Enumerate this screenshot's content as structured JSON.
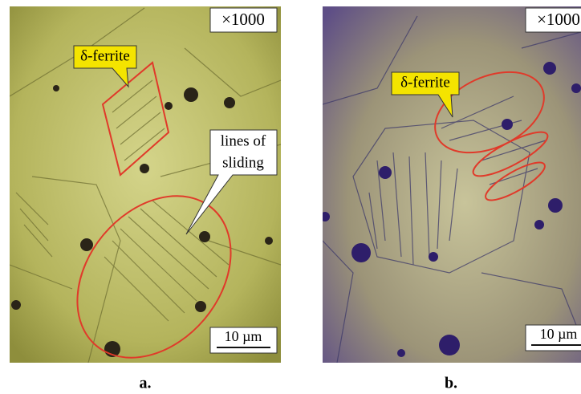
{
  "panels": [
    {
      "magnification": "×1000",
      "callout": "δ-ferrite",
      "annotation": [
        "lines of",
        "sliding"
      ],
      "scale": "10 µm",
      "caption": "a."
    },
    {
      "magnification": "×1000",
      "callout": "δ-ferrite",
      "scale": "10 µm",
      "caption": "b."
    }
  ]
}
